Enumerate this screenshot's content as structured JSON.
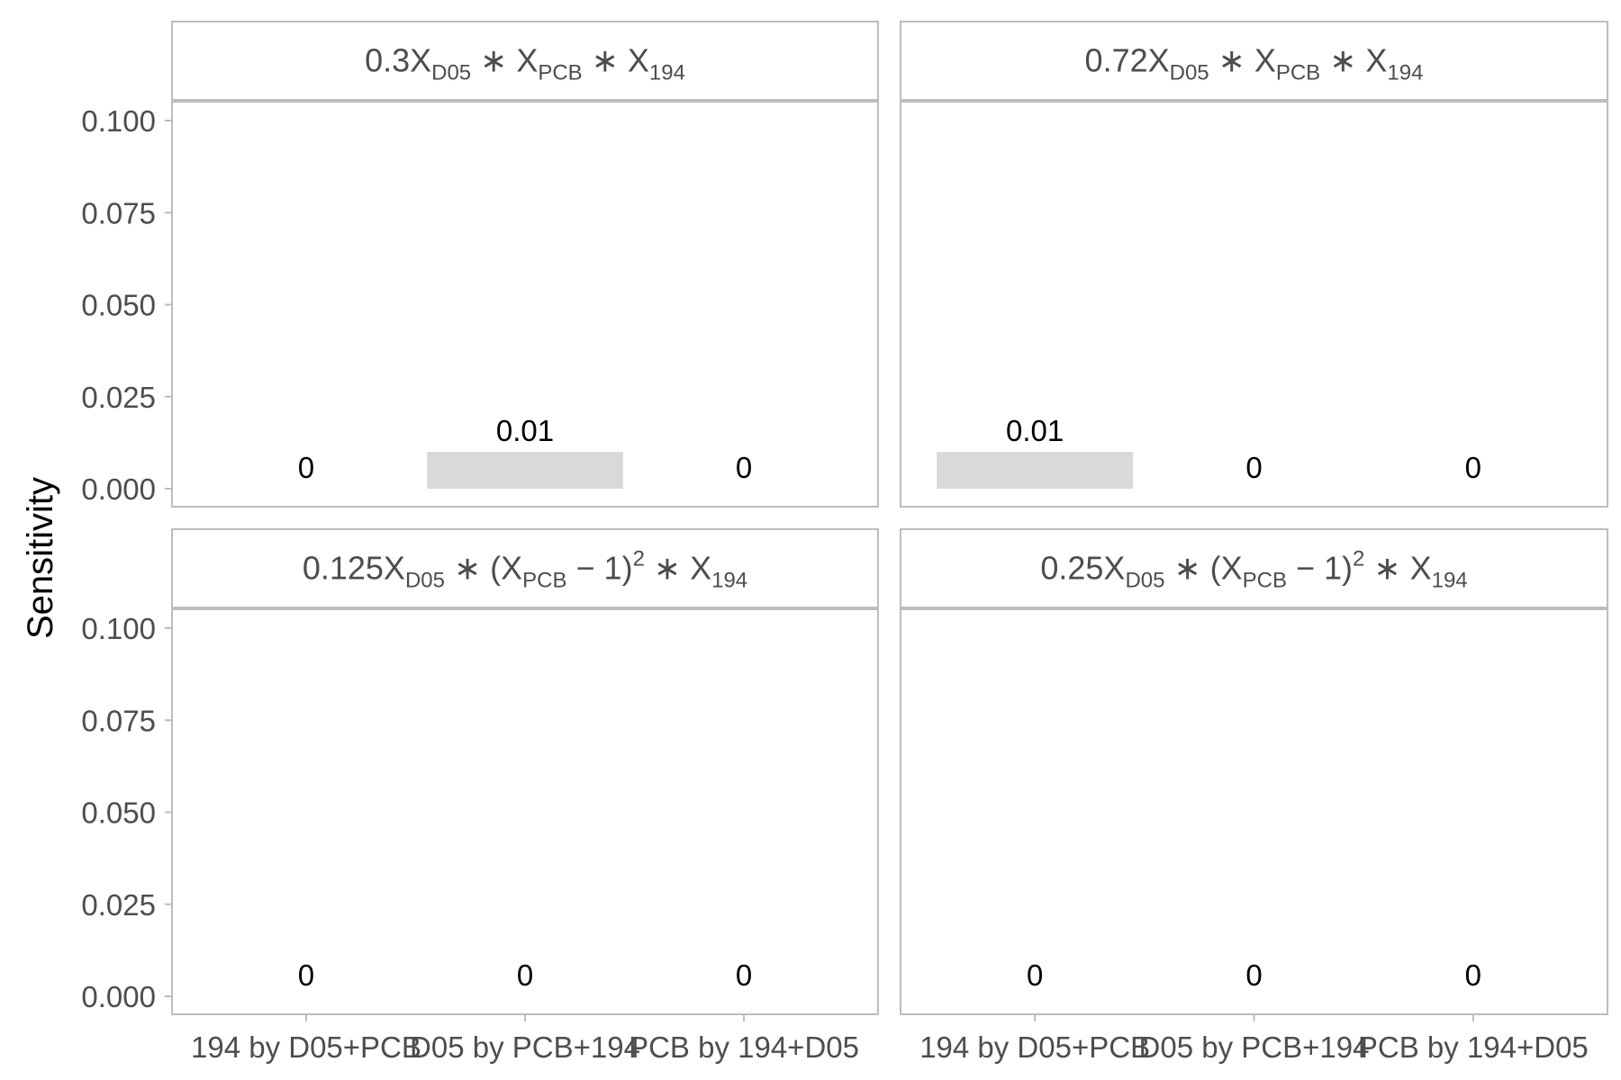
{
  "chart_data": {
    "type": "bar",
    "ylabel": "Sensitivity",
    "xlabel": "",
    "ylim": [
      0,
      0.1
    ],
    "yticks": [
      "0.000",
      "0.025",
      "0.050",
      "0.075",
      "0.100"
    ],
    "categories": [
      "194 by D05+PCB",
      "D05 by PCB+194",
      "PCB by 194+D05"
    ],
    "grid": false,
    "bar_color": "#d9d9d9",
    "panels": [
      {
        "coef": "0.3",
        "values": [
          0,
          0.01,
          0
        ],
        "labels": [
          "0",
          "0.01",
          "0"
        ],
        "squared": false
      },
      {
        "coef": "0.72",
        "values": [
          0.01,
          0,
          0
        ],
        "labels": [
          "0.01",
          "0",
          "0"
        ],
        "squared": false
      },
      {
        "coef": "0.125",
        "values": [
          0,
          0,
          0
        ],
        "labels": [
          "0",
          "0",
          "0"
        ],
        "squared": true
      },
      {
        "coef": "0.25",
        "values": [
          0,
          0,
          0
        ],
        "labels": [
          "0",
          "0",
          "0"
        ],
        "squared": true
      }
    ],
    "formula_parts": {
      "x": "X",
      "sub_d05": "D05",
      "sub_pcb": "PCB",
      "sub_194": "194",
      "times": "∗",
      "minus_one": "− 1",
      "open_paren": "(",
      "close_paren": ")",
      "power": "2"
    }
  }
}
